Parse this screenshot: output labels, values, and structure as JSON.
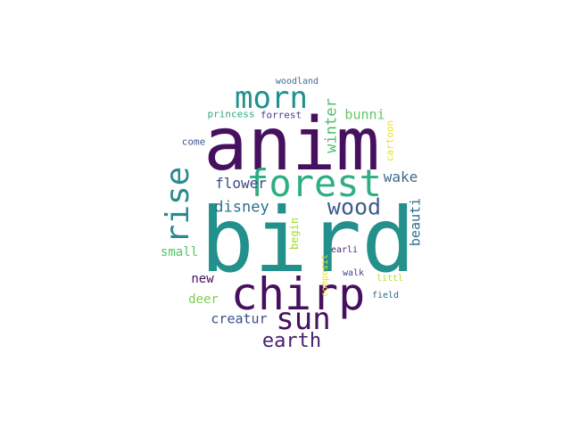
{
  "words": [
    {
      "text": "anim",
      "color": "#46105e"
    },
    {
      "text": "bird",
      "color": "#23908b"
    },
    {
      "text": "chirp",
      "color": "#46105e"
    },
    {
      "text": "forest",
      "color": "#2eae82"
    },
    {
      "text": "morn",
      "color": "#1f918c"
    },
    {
      "text": "rise",
      "color": "#2a8a8e"
    },
    {
      "text": "sun",
      "color": "#46105e"
    },
    {
      "text": "wood",
      "color": "#3f5c8c"
    },
    {
      "text": "earth",
      "color": "#47206e"
    },
    {
      "text": "disney",
      "color": "#2c708e"
    },
    {
      "text": "flower",
      "color": "#3e4a88"
    },
    {
      "text": "wake",
      "color": "#3e6a8c"
    },
    {
      "text": "winter",
      "color": "#4cbf6b"
    },
    {
      "text": "bunni",
      "color": "#63c965"
    },
    {
      "text": "beauti",
      "color": "#2c6e8e"
    },
    {
      "text": "creatur",
      "color": "#3b4f8a"
    },
    {
      "text": "small",
      "color": "#51c668"
    },
    {
      "text": "new",
      "color": "#46105e"
    },
    {
      "text": "deer",
      "color": "#7ad151"
    },
    {
      "text": "begin",
      "color": "#a2da37"
    },
    {
      "text": "cartoon",
      "color": "#ece11f"
    },
    {
      "text": "princess",
      "color": "#2ea983"
    },
    {
      "text": "forrest",
      "color": "#40428a"
    },
    {
      "text": "come",
      "color": "#3f5a8c"
    },
    {
      "text": "woodland",
      "color": "#3b6d8d"
    },
    {
      "text": "earli",
      "color": "#482878"
    },
    {
      "text": "walk",
      "color": "#414487"
    },
    {
      "text": "composit",
      "color": "#ece11f"
    },
    {
      "text": "littl",
      "color": "#b8de29"
    },
    {
      "text": "field",
      "color": "#31688e"
    }
  ]
}
